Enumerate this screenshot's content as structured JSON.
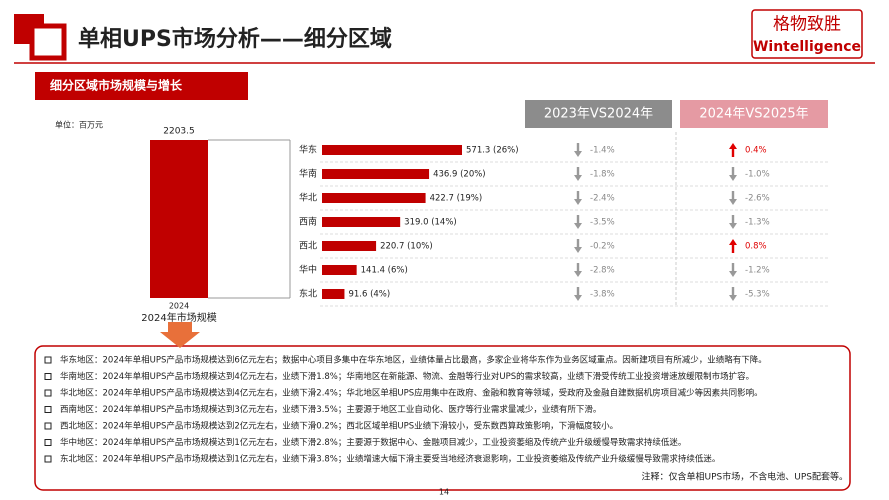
{
  "header": {
    "title": "单相UPS市场分析——细分区域",
    "logo_cn": "格物致胜",
    "logo_en": "Wintelligence"
  },
  "banner": "细分区域市场规模与增长",
  "unit": "单位：百万元",
  "chart_data": [
    {
      "type": "bar",
      "title": "2024年市场规模",
      "categories": [
        "2024"
      ],
      "values": [
        2203.5
      ],
      "color": "#c00000"
    },
    {
      "type": "hbar",
      "categories": [
        "华东",
        "华南",
        "华北",
        "西南",
        "西北",
        "华中",
        "东北"
      ],
      "values": [
        571.3,
        436.9,
        422.7,
        319.0,
        220.7,
        141.4,
        91.6
      ],
      "value_labels": [
        "571.3 (26%)",
        "436.9 (20%)",
        "422.7 (19%)",
        "319.0 (14%)",
        "220.7 (10%)",
        "141.4 (6%)",
        "91.6 (4%)"
      ],
      "color": "#c00000"
    }
  ],
  "comparison": {
    "headers": [
      "2023年VS2024年",
      "2024年VS2025年"
    ],
    "rows": [
      [
        "-1.4%",
        "0.4%"
      ],
      [
        "-1.8%",
        "-1.0%"
      ],
      [
        "-2.4%",
        "-2.6%"
      ],
      [
        "-3.5%",
        "-1.3%"
      ],
      [
        "-0.2%",
        "0.8%"
      ],
      [
        "-2.8%",
        "-1.2%"
      ],
      [
        "-3.8%",
        "-5.3%"
      ]
    ]
  },
  "notes": [
    "华东地区：2024年单相UPS产品市场规模达到6亿元左右；数据中心项目多集中在华东地区，业绩体量占比最高，多家企业将华东作为业务区域重点。因新建项目有所减少，业绩略有下降。",
    "华南地区：2024年单相UPS产品市场规模达到4亿元左右，业绩下滑1.8%；华南地区在新能源、物流、金融等行业对UPS的需求较高，业绩下滑受传统工业投资增速放缓限制市场扩容。",
    "华北地区：2024年单相UPS产品市场规模达到4亿元左右，业绩下滑2.4%；华北地区单相UPS应用集中在政府、金融和教育等领域，受政府及金融自建数据机房项目减少等因素共同影响。",
    "西南地区：2024年单相UPS产品市场规模达到3亿元左右，业绩下滑3.5%；主要源于地区工业自动化、医疗等行业需求量减少，业绩有所下滑。",
    "西北地区：2024年单相UPS产品市场规模达到2亿元左右，业绩下滑0.2%；西北区域单相UPS业绩下滑较小，受东数西算政策影响，下滑幅度较小。",
    "华中地区：2024年单相UPS产品市场规模达到1亿元左右，业绩下滑2.8%；主要源于数据中心、金融项目减少，工业投资萎缩及传统产业升级缓慢导致需求持续低迷。",
    "东北地区：2024年单相UPS产品市场规模达到1亿元左右，业绩下滑3.8%；业绩增速大幅下滑主要受当地经济衰退影响，工业投资萎缩及传统产业升级缓慢导致需求持续低迷。"
  ],
  "footnote": "注释：仅含单相UPS市场，不含电池、UPS配套等。",
  "page": "14"
}
